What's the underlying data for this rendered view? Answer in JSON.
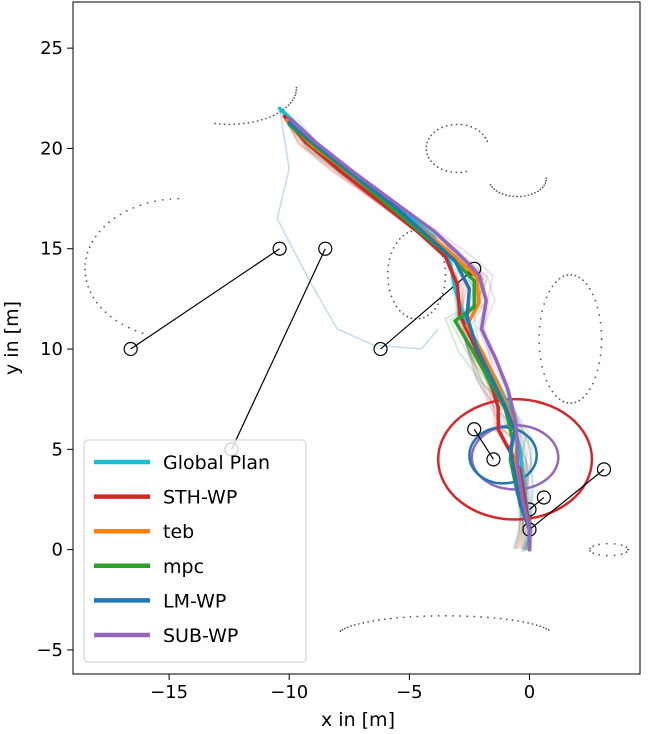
{
  "chart_data": {
    "type": "line",
    "xlabel": "x in [m]",
    "ylabel": "y in [m]",
    "xlim": [
      -19.0,
      4.6
    ],
    "ylim": [
      -6.2,
      27.3
    ],
    "x_ticks": [
      -15,
      -10,
      -5,
      0
    ],
    "x_tick_labels": [
      "−15",
      "−10",
      "−5",
      "0"
    ],
    "y_ticks": [
      -5,
      0,
      5,
      10,
      15,
      20,
      25
    ],
    "y_tick_labels": [
      "−5",
      "0",
      "5",
      "10",
      "15",
      "20",
      "25"
    ],
    "grid": false,
    "legend_position": "lower-left",
    "series": [
      {
        "name": "Global Plan",
        "color": "#17becf",
        "points": [
          [
            -10.4,
            22.0
          ],
          [
            -9.5,
            21.0
          ],
          [
            -8.2,
            19.5
          ],
          [
            -6.5,
            18.0
          ],
          [
            -5.2,
            16.8
          ],
          [
            -4.0,
            15.6
          ],
          [
            -3.3,
            14.3
          ],
          [
            -3.1,
            13.0
          ],
          [
            -2.7,
            11.5
          ],
          [
            -2.1,
            10.0
          ],
          [
            -1.4,
            8.5
          ],
          [
            -0.8,
            7.0
          ],
          [
            -0.4,
            5.0
          ],
          [
            -0.2,
            3.0
          ],
          [
            0.0,
            1.0
          ],
          [
            0.0,
            0.0
          ]
        ]
      },
      {
        "name": "STH-WP",
        "color": "#d62728",
        "points": [
          [
            -10.2,
            21.6
          ],
          [
            -9.3,
            20.3
          ],
          [
            -7.8,
            18.8
          ],
          [
            -6.2,
            17.3
          ],
          [
            -4.6,
            15.8
          ],
          [
            -3.5,
            14.6
          ],
          [
            -3.0,
            13.2
          ],
          [
            -2.9,
            11.7
          ],
          [
            -2.3,
            10.2
          ],
          [
            -1.7,
            8.6
          ],
          [
            -1.3,
            7.1
          ],
          [
            -1.3,
            6.0
          ],
          [
            -1.0,
            5.3
          ],
          [
            -0.4,
            4.0
          ],
          [
            -0.2,
            2.5
          ],
          [
            0.0,
            1.0
          ],
          [
            0.0,
            0.0
          ]
        ]
      },
      {
        "name": "teb",
        "color": "#ff7f0e",
        "points": [
          [
            -10.1,
            21.4
          ],
          [
            -9.0,
            20.1
          ],
          [
            -7.4,
            18.7
          ],
          [
            -5.8,
            17.2
          ],
          [
            -4.2,
            15.7
          ],
          [
            -3.1,
            14.6
          ],
          [
            -2.2,
            13.6
          ],
          [
            -2.1,
            12.3
          ],
          [
            -2.6,
            11.2
          ],
          [
            -1.9,
            9.7
          ],
          [
            -1.3,
            8.2
          ],
          [
            -0.8,
            6.7
          ],
          [
            -0.5,
            5.4
          ],
          [
            -0.6,
            4.2
          ],
          [
            -0.4,
            2.5
          ],
          [
            0.0,
            1.0
          ],
          [
            0.0,
            0.0
          ]
        ]
      },
      {
        "name": "mpc",
        "color": "#2ca02c",
        "points": [
          [
            -10.0,
            21.2
          ],
          [
            -8.8,
            20.0
          ],
          [
            -7.2,
            18.5
          ],
          [
            -5.7,
            17.0
          ],
          [
            -4.3,
            15.6
          ],
          [
            -3.2,
            14.5
          ],
          [
            -2.3,
            13.4
          ],
          [
            -2.3,
            12.1
          ],
          [
            -3.1,
            11.4
          ],
          [
            -2.4,
            10.0
          ],
          [
            -1.7,
            8.5
          ],
          [
            -1.0,
            7.0
          ],
          [
            -0.7,
            5.5
          ],
          [
            -0.8,
            4.5
          ],
          [
            -0.5,
            2.8
          ],
          [
            0.0,
            1.0
          ],
          [
            0.0,
            0.0
          ]
        ]
      },
      {
        "name": "LM-WP",
        "color": "#1f77b4",
        "points": [
          [
            -10.0,
            21.3
          ],
          [
            -8.8,
            20.1
          ],
          [
            -7.2,
            18.6
          ],
          [
            -5.6,
            17.1
          ],
          [
            -4.2,
            15.6
          ],
          [
            -3.1,
            14.4
          ],
          [
            -2.5,
            13.0
          ],
          [
            -2.6,
            11.6
          ],
          [
            -2.2,
            10.1
          ],
          [
            -1.6,
            8.6
          ],
          [
            -1.0,
            7.1
          ],
          [
            -0.6,
            5.9
          ],
          [
            -0.8,
            5.0
          ],
          [
            -0.6,
            3.7
          ],
          [
            -0.4,
            2.3
          ],
          [
            0.0,
            1.0
          ],
          [
            0.0,
            0.0
          ]
        ]
      },
      {
        "name": "SUB-WP",
        "color": "#9467bd",
        "points": [
          [
            -10.0,
            21.5
          ],
          [
            -8.9,
            20.3
          ],
          [
            -7.3,
            18.8
          ],
          [
            -5.6,
            17.3
          ],
          [
            -4.0,
            15.9
          ],
          [
            -3.0,
            14.8
          ],
          [
            -2.1,
            13.7
          ],
          [
            -1.8,
            12.4
          ],
          [
            -2.0,
            11.0
          ],
          [
            -1.4,
            9.5
          ],
          [
            -0.9,
            8.0
          ],
          [
            -0.6,
            6.5
          ],
          [
            -0.5,
            5.3
          ],
          [
            -0.5,
            4.3
          ],
          [
            -0.3,
            2.6
          ],
          [
            0.0,
            1.0
          ],
          [
            0.0,
            0.0
          ]
        ]
      }
    ],
    "obstacle_links": [
      [
        [
          -16.6,
          10.0
        ],
        [
          -10.4,
          15.0
        ]
      ],
      [
        [
          -8.5,
          15.0
        ],
        [
          -12.4,
          5.0
        ]
      ],
      [
        [
          -6.2,
          10.0
        ],
        [
          -2.3,
          14.0
        ]
      ],
      [
        [
          -2.3,
          6.0
        ],
        [
          -1.5,
          4.5
        ]
      ],
      [
        [
          3.1,
          4.0
        ],
        [
          0.0,
          1.0
        ]
      ],
      [
        [
          0.0,
          2.0
        ],
        [
          0.6,
          2.6
        ]
      ]
    ],
    "circles": [
      {
        "label": "STH-WP range",
        "color": "#d62728",
        "center": [
          -0.6,
          4.5
        ],
        "radius_x": 3.2,
        "radius_y": 3.0
      },
      {
        "label": "SUB-WP range",
        "color": "#9467bd",
        "center": [
          -0.6,
          4.6
        ],
        "radius_x": 1.8,
        "radius_y": 1.6
      },
      {
        "label": "LM-WP range",
        "color": "#1f77b4",
        "center": [
          -1.1,
          4.7
        ],
        "radius_x": 1.4,
        "radius_y": 1.4
      }
    ]
  }
}
